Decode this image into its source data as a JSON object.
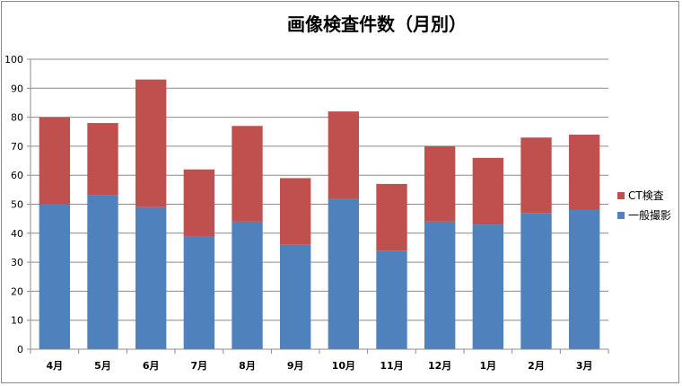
{
  "chart_data": {
    "type": "bar",
    "stacked": true,
    "title": "画像検査件数（月別）",
    "categories": [
      "4月",
      "5月",
      "6月",
      "7月",
      "8月",
      "9月",
      "10月",
      "11月",
      "12月",
      "1月",
      "2月",
      "3月"
    ],
    "series": [
      {
        "name": "一般撮影",
        "color": "#4f81bd",
        "values": [
          50,
          53,
          49,
          39,
          44,
          36,
          52,
          34,
          44,
          43,
          47,
          48
        ]
      },
      {
        "name": "CT検査",
        "color": "#c0504d",
        "values": [
          30,
          25,
          44,
          23,
          33,
          23,
          30,
          23,
          26,
          23,
          26,
          26
        ]
      }
    ],
    "ylim": [
      0,
      100
    ],
    "yticks": [
      0,
      10,
      20,
      30,
      40,
      50,
      60,
      70,
      80,
      90,
      100
    ],
    "grid": true,
    "legend": "right"
  }
}
